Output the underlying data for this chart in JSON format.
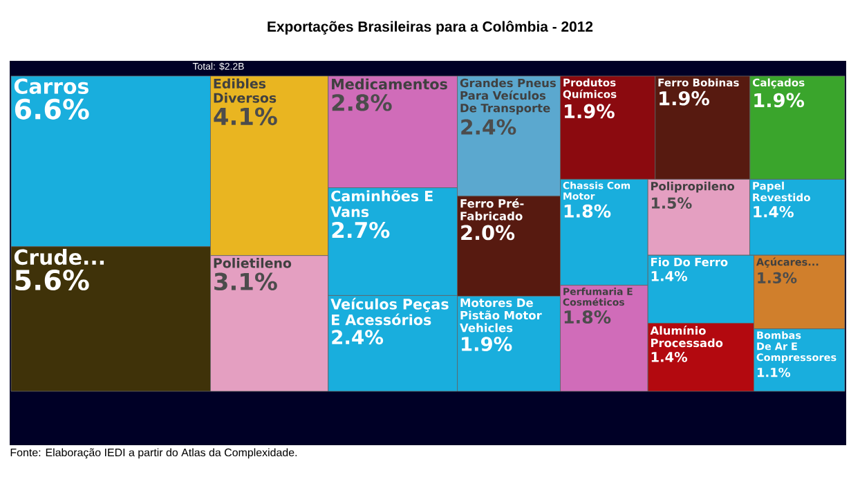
{
  "chart_data": {
    "type": "other",
    "title": "Exportações Brasileiras para a Colômbia - 2012",
    "subtitle": "Total: $2.2B",
    "categories": [
      "Carros",
      "Crude...",
      "Edibles Diversos",
      "Polietileno",
      "Medicamentos",
      "Caminhões E Vans",
      "Veículos Peças E Acessórios",
      "Grandes Pneus Para Veículos De Transporte",
      "Ferro Pré-Fabricado",
      "Motores De Pistão Motor Vehicles",
      "Produtos Químicos",
      "Ferro Bobinas",
      "Calçados",
      "Chassis Com Motor",
      "Perfumaria E Cosméticos",
      "Polipropileno",
      "Papel Revestido",
      "Fio Do Ferro",
      "Alumínio Processado",
      "Açúcares...",
      "Bombas De Ar E Compressores"
    ],
    "values": [
      6.6,
      5.6,
      4.1,
      3.1,
      2.8,
      2.7,
      2.4,
      2.4,
      2.0,
      1.9,
      1.9,
      1.9,
      1.9,
      1.8,
      1.8,
      1.5,
      1.4,
      1.4,
      1.4,
      1.3,
      1.1
    ],
    "value_labels": [
      "6.6%",
      "5.6%",
      "4.1%",
      "3.1%",
      "2.8%",
      "2.7%",
      "2.4%",
      "2.4%",
      "2.0%",
      "1.9%",
      "1.9%",
      "1.9%",
      "1.9%",
      "1.8%",
      "1.8%",
      "1.5%",
      "1.4%",
      "1.4%",
      "1.4%",
      "1.3%",
      "1.1%"
    ],
    "colors": [
      "#19aedd",
      "#3f3209",
      "#e9b521",
      "#e49fc1",
      "#d06cb9",
      "#19aedd",
      "#19aedd",
      "#5ba8cf",
      "#571a10",
      "#19aedd",
      "#8b0a0f",
      "#571a10",
      "#3aa52c",
      "#19aedd",
      "#d06cb9",
      "#e49fc1",
      "#19aedd",
      "#19aedd",
      "#b3090f",
      "#d07f2c",
      "#19aedd"
    ],
    "annotations": [
      "Fonte: Elaboração IEDI a partir do Atlas da Complexidade."
    ]
  }
}
